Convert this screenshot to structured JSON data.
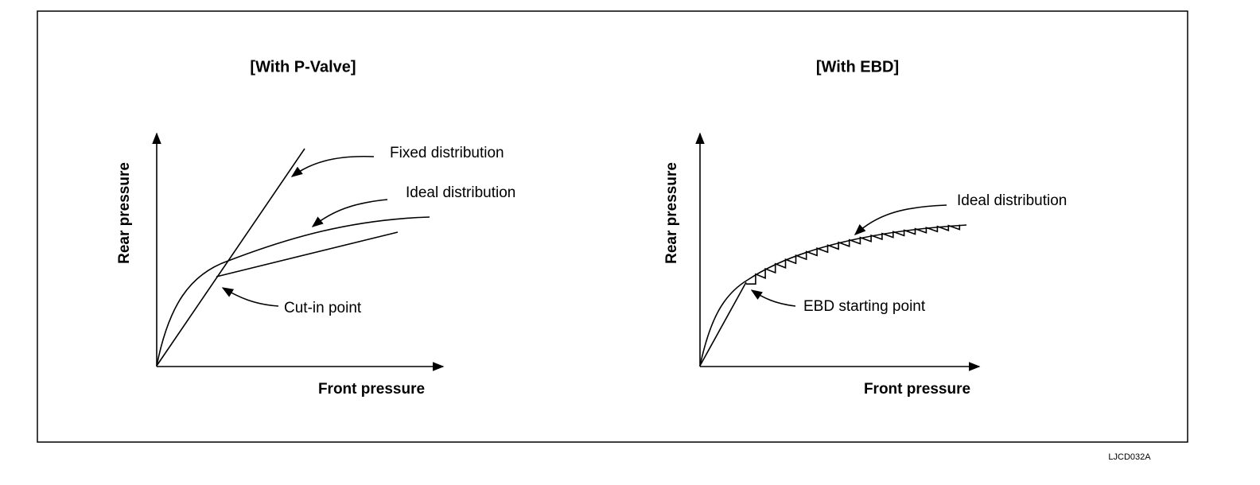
{
  "left": {
    "title": "[With P-Valve]",
    "y_axis": "Rear pressure",
    "x_axis": "Front pressure",
    "labels": [
      "Fixed distribution",
      "Ideal distribution",
      "Cut-in point"
    ]
  },
  "right": {
    "title": "[With EBD]",
    "y_axis": "Rear pressure",
    "x_axis": "Front pressure",
    "labels": [
      "Ideal distribution",
      "EBD starting point"
    ]
  },
  "figure_id": "LJCD032A"
}
